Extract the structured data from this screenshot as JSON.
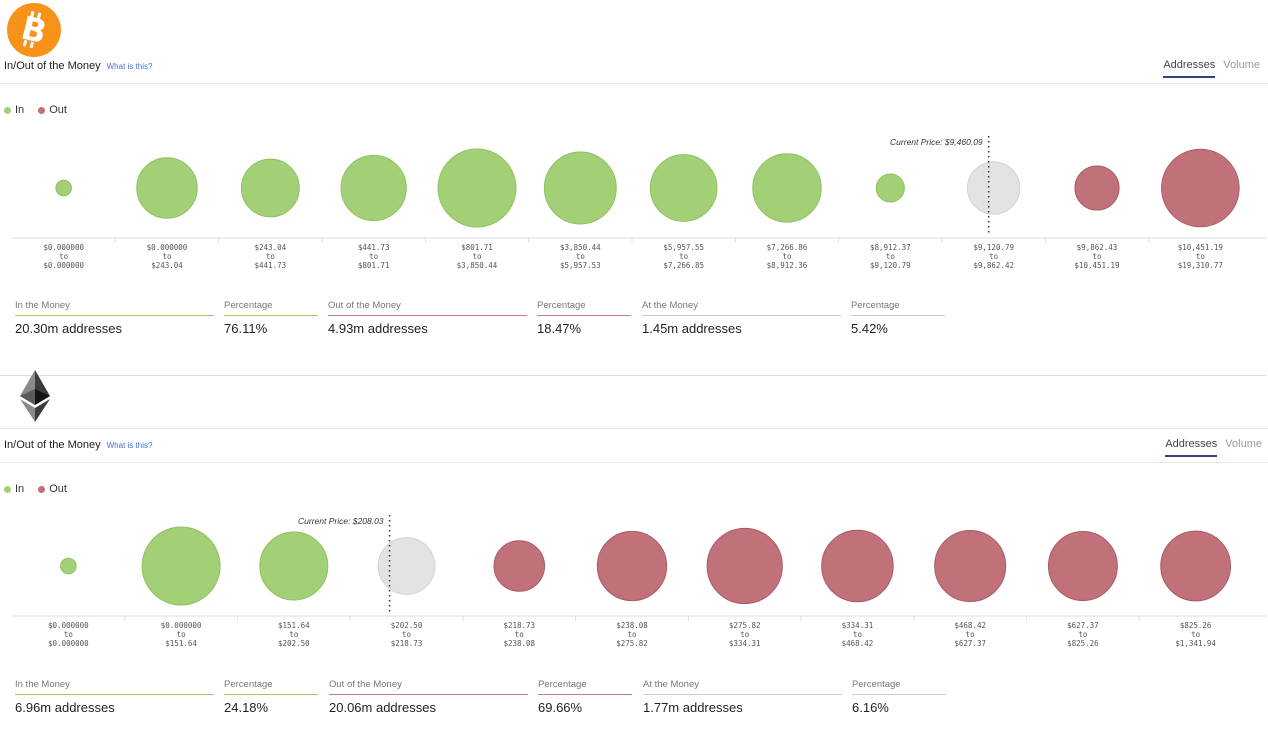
{
  "panels": [
    {
      "coin_logo": "bitcoin-logo",
      "title": "In/Out of the Money",
      "help_link": "What is this?",
      "tabs": [
        {
          "label": "Addresses",
          "active": true
        },
        {
          "label": "Volume",
          "active": false
        }
      ],
      "legend": {
        "in": "In",
        "out": "Out"
      },
      "current_price_label": "Current Price: $9,460.09",
      "stats": [
        {
          "label": "In the Money",
          "value": "20.30m addresses",
          "kind": "in"
        },
        {
          "label": "Percentage",
          "value": "76.11%",
          "kind": "in"
        },
        {
          "label": "Out of the Money",
          "value": "4.93m addresses",
          "kind": "out"
        },
        {
          "label": "Percentage",
          "value": "18.47%",
          "kind": "out"
        },
        {
          "label": "At the Money",
          "value": "1.45m addresses",
          "kind": "at"
        },
        {
          "label": "Percentage",
          "value": "5.42%",
          "kind": "at"
        }
      ]
    },
    {
      "coin_logo": "ethereum-logo",
      "title": "In/Out of the Money",
      "help_link": "What is this?",
      "tabs": [
        {
          "label": "Addresses",
          "active": true
        },
        {
          "label": "Volume",
          "active": false
        }
      ],
      "legend": {
        "in": "In",
        "out": "Out"
      },
      "current_price_label": "Current Price: $208.03",
      "stats": [
        {
          "label": "In the Money",
          "value": "6.96m addresses",
          "kind": "in"
        },
        {
          "label": "Percentage",
          "value": "24.18%",
          "kind": "in"
        },
        {
          "label": "Out of the Money",
          "value": "20.06m addresses",
          "kind": "out"
        },
        {
          "label": "Percentage",
          "value": "69.66%",
          "kind": "out"
        },
        {
          "label": "At the Money",
          "value": "1.77m addresses",
          "kind": "at"
        },
        {
          "label": "Percentage",
          "value": "6.16%",
          "kind": "at"
        }
      ]
    }
  ],
  "colors": {
    "in": "#a3d077",
    "in_stroke": "#8fc25f",
    "out": "#c1717a",
    "out_stroke": "#a95c66",
    "at": "#e3e3e3",
    "at_stroke": "#d2d2d2",
    "btc": "#f7931a"
  },
  "chart_data": [
    {
      "type": "bubble",
      "current_price": 9460.09,
      "bins": [
        {
          "from": "$0.000000",
          "to": "$0.000000",
          "status": "in",
          "size": 0.04
        },
        {
          "from": "$0.000000",
          "to": "$243.04",
          "status": "in",
          "size": 0.6
        },
        {
          "from": "$243.04",
          "to": "$441.73",
          "status": "in",
          "size": 0.55
        },
        {
          "from": "$441.73",
          "to": "$801.71",
          "status": "in",
          "size": 0.7
        },
        {
          "from": "$801.71",
          "to": "$3,850.44",
          "status": "in",
          "size": 1.0
        },
        {
          "from": "$3,850.44",
          "to": "$5,957.53",
          "status": "in",
          "size": 0.85
        },
        {
          "from": "$5,957.55",
          "to": "$7,266.85",
          "status": "in",
          "size": 0.73
        },
        {
          "from": "$7,266.86",
          "to": "$8,912.36",
          "status": "in",
          "size": 0.77
        },
        {
          "from": "$8,912.37",
          "to": "$9,120.79",
          "status": "in",
          "size": 0.13
        },
        {
          "from": "$9,120.79",
          "to": "$9,862.42",
          "status": "at",
          "size": 0.45
        },
        {
          "from": "$9,862.43",
          "to": "$10,451.19",
          "status": "out",
          "size": 0.32
        },
        {
          "from": "$10,451.19",
          "to": "$19,310.77",
          "status": "out",
          "size": 0.99
        }
      ]
    },
    {
      "type": "bubble",
      "current_price": 208.03,
      "bins": [
        {
          "from": "$0.000000",
          "to": "$0.000000",
          "status": "in",
          "size": 0.04
        },
        {
          "from": "$0.000000",
          "to": "$151.64",
          "status": "in",
          "size": 1.0
        },
        {
          "from": "$151.64",
          "to": "$202.50",
          "status": "in",
          "size": 0.76
        },
        {
          "from": "$202.50",
          "to": "$218.73",
          "status": "at",
          "size": 0.53
        },
        {
          "from": "$218.73",
          "to": "$238.08",
          "status": "out",
          "size": 0.42
        },
        {
          "from": "$238.08",
          "to": "$275.82",
          "status": "out",
          "size": 0.79
        },
        {
          "from": "$275.82",
          "to": "$334.31",
          "status": "out",
          "size": 0.93
        },
        {
          "from": "$334.31",
          "to": "$468.42",
          "status": "out",
          "size": 0.84
        },
        {
          "from": "$468.42",
          "to": "$627.37",
          "status": "out",
          "size": 0.83
        },
        {
          "from": "$627.37",
          "to": "$825.26",
          "status": "out",
          "size": 0.78
        },
        {
          "from": "$825.26",
          "to": "$1,341.94",
          "status": "out",
          "size": 0.8
        }
      ]
    }
  ]
}
